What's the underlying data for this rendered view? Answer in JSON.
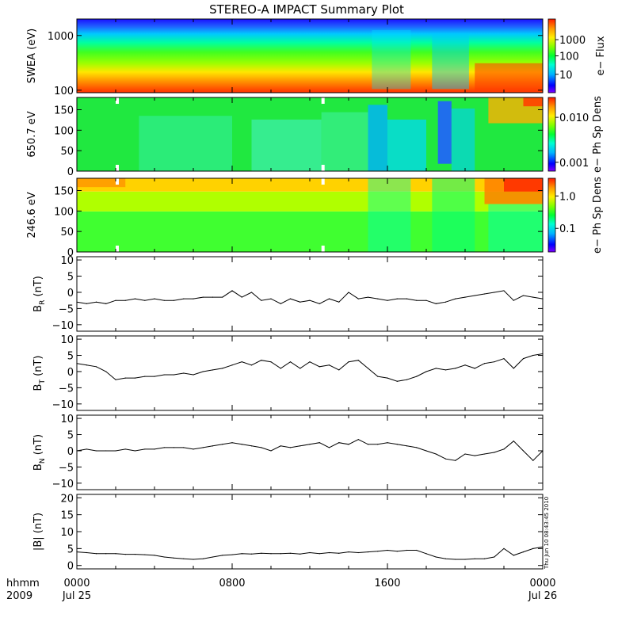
{
  "title": "STEREO-A IMPACT Summary Plot",
  "timestamp_note": "Thu Jun 10 08:43:45 2010",
  "x_axis": {
    "corner_label_top": "hhmm",
    "corner_label_bottom": "2009",
    "ticks": [
      {
        "hhmm": "0000",
        "date": "Jul 25",
        "hours": 0
      },
      {
        "hhmm": "0800",
        "date": "",
        "hours": 8
      },
      {
        "hhmm": "1600",
        "date": "",
        "hours": 16
      },
      {
        "hhmm": "0000",
        "date": "Jul 26",
        "hours": 24
      }
    ]
  },
  "panels": {
    "swea": {
      "ylabel": "SWEA (eV)",
      "yticks": [
        "1000",
        "100"
      ],
      "colorbar_label": "e− Flux",
      "colorbar_ticks": [
        "1000",
        "100",
        "10"
      ]
    },
    "pad650": {
      "ylabel": "650.7 eV",
      "yticks": [
        "150",
        "100",
        "50",
        "0"
      ],
      "colorbar_label": "e− Ph Sp Dens",
      "colorbar_ticks": [
        "0.010",
        "0.001"
      ]
    },
    "pad246": {
      "ylabel": "246.6 eV",
      "yticks": [
        "150",
        "100",
        "50",
        "0"
      ],
      "colorbar_label": "e− Ph Sp Dens",
      "colorbar_ticks": [
        "1.0",
        "0.1"
      ]
    },
    "br": {
      "ylabel_main": "B",
      "ylabel_sub": "R",
      "ylabel_unit": " (nT)",
      "yticks": [
        "10",
        "5",
        "0",
        "−5",
        "−10"
      ]
    },
    "bt": {
      "ylabel_main": "B",
      "ylabel_sub": "T",
      "ylabel_unit": " (nT)",
      "yticks": [
        "10",
        "5",
        "0",
        "−5",
        "−10"
      ]
    },
    "bn": {
      "ylabel_main": "B",
      "ylabel_sub": "N",
      "ylabel_unit": " (nT)",
      "yticks": [
        "10",
        "5",
        "0",
        "−5",
        "−10"
      ]
    },
    "bmag": {
      "ylabel": "|B| (nT)",
      "yticks": [
        "20",
        "15",
        "10",
        "5",
        "0"
      ]
    }
  },
  "colors": {
    "axis": "#000000",
    "line": "#000000",
    "background": "#ffffff"
  },
  "chart_data": [
    {
      "type": "heatmap",
      "ylabel": "SWEA (eV)",
      "yscale": "log",
      "ylim": [
        90,
        2000
      ],
      "colorbar": {
        "label": "e− Flux",
        "scale": "log",
        "range": [
          3,
          10000
        ]
      }
    },
    {
      "type": "heatmap",
      "ylabel": "650.7 eV",
      "ylim": [
        0,
        180
      ],
      "colorbar": {
        "label": "e− Ph Sp Dens",
        "scale": "log",
        "range": [
          0.0004,
          0.02
        ]
      }
    },
    {
      "type": "heatmap",
      "ylabel": "246.6 eV",
      "ylim": [
        0,
        180
      ],
      "colorbar": {
        "label": "e− Ph Sp Dens",
        "scale": "log",
        "range": [
          0.02,
          1.5
        ]
      }
    },
    {
      "type": "line",
      "ylabel": "BR (nT)",
      "ylim": [
        -12,
        11
      ],
      "x": [
        0,
        0.5,
        1,
        1.5,
        2,
        2.5,
        3,
        3.5,
        4,
        4.5,
        5,
        5.5,
        6,
        6.5,
        7,
        7.5,
        8,
        8.5,
        9,
        9.5,
        10,
        10.5,
        11,
        11.5,
        12,
        12.5,
        13,
        13.5,
        14,
        14.5,
        15,
        15.5,
        16,
        16.5,
        17,
        17.5,
        18,
        18.5,
        19,
        19.5,
        20,
        20.5,
        21,
        21.5,
        22,
        22.5,
        23,
        23.5,
        24
      ],
      "series": [
        {
          "values": [
            -3,
            -3.5,
            -3,
            -3.5,
            -2.5,
            -2.5,
            -2,
            -2.5,
            -2,
            -2.5,
            -2.5,
            -2,
            -2,
            -1.5,
            -1.5,
            -1.5,
            0.5,
            -1.5,
            0,
            -2.5,
            -2,
            -3.5,
            -2,
            -3,
            -2.5,
            -3.5,
            -2,
            -3,
            0,
            -2,
            -1.5,
            -2,
            -2.5,
            -2,
            -2,
            -2.5,
            -2.5,
            -3.5,
            -3,
            -2,
            -1.5,
            -1,
            -0.5,
            0,
            0.5,
            -2.5,
            -1,
            -1.5,
            -2
          ]
        }
      ]
    },
    {
      "type": "line",
      "ylabel": "BT (nT)",
      "ylim": [
        -12,
        11
      ],
      "x": [
        0,
        0.5,
        1,
        1.5,
        2,
        2.5,
        3,
        3.5,
        4,
        4.5,
        5,
        5.5,
        6,
        6.5,
        7,
        7.5,
        8,
        8.5,
        9,
        9.5,
        10,
        10.5,
        11,
        11.5,
        12,
        12.5,
        13,
        13.5,
        14,
        14.5,
        15,
        15.5,
        16,
        16.5,
        17,
        17.5,
        18,
        18.5,
        19,
        19.5,
        20,
        20.5,
        21,
        21.5,
        22,
        22.5,
        23,
        23.5,
        24
      ],
      "series": [
        {
          "values": [
            2.5,
            2,
            1.5,
            0,
            -2.5,
            -2,
            -2,
            -1.5,
            -1.5,
            -1,
            -1,
            -0.5,
            -1,
            0,
            0.5,
            1,
            2,
            3,
            2,
            3.5,
            3,
            1,
            3,
            1,
            3,
            1.5,
            2,
            0.5,
            3,
            3.5,
            1,
            -1.5,
            -2,
            -3,
            -2.5,
            -1.5,
            0,
            1,
            0.5,
            1,
            2,
            1,
            2.5,
            3,
            4,
            1,
            4,
            5,
            5.5
          ]
        }
      ]
    },
    {
      "type": "line",
      "ylabel": "BN (nT)",
      "ylim": [
        -12,
        11
      ],
      "x": [
        0,
        0.5,
        1,
        1.5,
        2,
        2.5,
        3,
        3.5,
        4,
        4.5,
        5,
        5.5,
        6,
        6.5,
        7,
        7.5,
        8,
        8.5,
        9,
        9.5,
        10,
        10.5,
        11,
        11.5,
        12,
        12.5,
        13,
        13.5,
        14,
        14.5,
        15,
        15.5,
        16,
        16.5,
        17,
        17.5,
        18,
        18.5,
        19,
        19.5,
        20,
        20.5,
        21,
        21.5,
        22,
        22.5,
        23,
        23.5,
        24
      ],
      "series": [
        {
          "values": [
            0,
            0.5,
            0,
            0,
            0,
            0.5,
            0,
            0.5,
            0.5,
            1,
            1,
            1,
            0.5,
            1,
            1.5,
            2,
            2.5,
            2,
            1.5,
            1,
            0,
            1.5,
            1,
            1.5,
            2,
            2.5,
            1,
            2.5,
            2,
            3.5,
            2,
            2,
            2.5,
            2,
            1.5,
            1,
            0,
            -1,
            -2.5,
            -3,
            -1,
            -1.5,
            -1,
            -0.5,
            0.5,
            3,
            0,
            -3,
            0
          ]
        }
      ]
    },
    {
      "type": "line",
      "ylabel": "|B| (nT)",
      "ylim": [
        -1,
        21
      ],
      "x": [
        0,
        0.5,
        1,
        1.5,
        2,
        2.5,
        3,
        3.5,
        4,
        4.5,
        5,
        5.5,
        6,
        6.5,
        7,
        7.5,
        8,
        8.5,
        9,
        9.5,
        10,
        10.5,
        11,
        11.5,
        12,
        12.5,
        13,
        13.5,
        14,
        14.5,
        15,
        15.5,
        16,
        16.5,
        17,
        17.5,
        18,
        18.5,
        19,
        19.5,
        20,
        20.5,
        21,
        21.5,
        22,
        22.5,
        23,
        23.5,
        24
      ],
      "series": [
        {
          "values": [
            4,
            3.8,
            3.5,
            3.5,
            3.5,
            3.3,
            3.3,
            3.2,
            3,
            2.5,
            2.2,
            2,
            1.8,
            2,
            2.5,
            3,
            3.2,
            3.5,
            3.4,
            3.6,
            3.5,
            3.5,
            3.6,
            3.4,
            3.8,
            3.5,
            3.8,
            3.6,
            4,
            3.8,
            4,
            4.2,
            4.5,
            4.2,
            4.5,
            4.5,
            3.5,
            2.5,
            2,
            1.8,
            1.8,
            2,
            2,
            2.5,
            5,
            3,
            4,
            5,
            5.5
          ]
        }
      ]
    }
  ]
}
